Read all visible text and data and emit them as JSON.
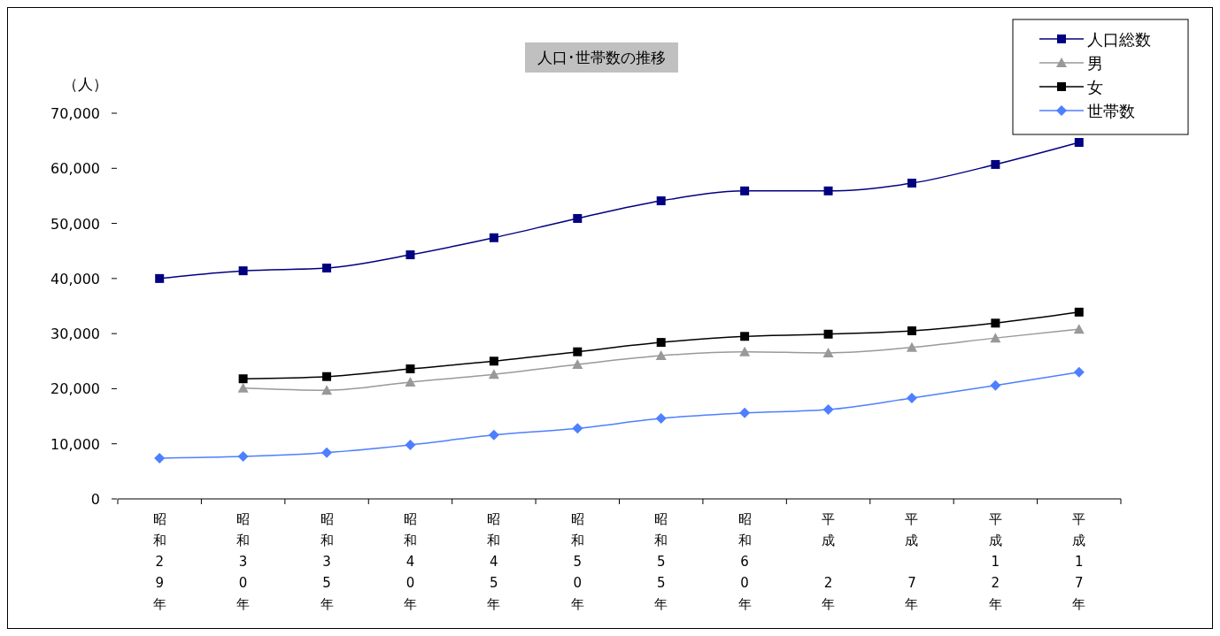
{
  "chart_data": {
    "type": "line",
    "title": "人口･世帯数の推移",
    "ylabel": "（人）",
    "categories": [
      "昭和29年",
      "昭和30年",
      "昭和35年",
      "昭和40年",
      "昭和45年",
      "昭和50年",
      "昭和55年",
      "昭和60年",
      "平成2年",
      "平成7年",
      "平成12年",
      "平成17年"
    ],
    "series": [
      {
        "name": "人口総数",
        "color": "#000080",
        "marker": "square",
        "values": [
          40000,
          41400,
          41900,
          44300,
          47400,
          50900,
          54100,
          55900,
          55900,
          57300,
          60700,
          64700
        ]
      },
      {
        "name": "男",
        "color": "#999999",
        "marker": "triangle",
        "values": [
          null,
          20100,
          19700,
          21200,
          22600,
          24400,
          26000,
          26700,
          26500,
          27500,
          29200,
          30800
        ]
      },
      {
        "name": "女",
        "color": "#000000",
        "marker": "square",
        "values": [
          null,
          21800,
          22200,
          23600,
          25000,
          26700,
          28400,
          29500,
          29900,
          30500,
          31900,
          33900
        ]
      },
      {
        "name": "世帯数",
        "color": "#4d7fff",
        "marker": "diamond",
        "values": [
          7400,
          7700,
          8400,
          9800,
          11600,
          12800,
          14600,
          15600,
          16200,
          18300,
          20600,
          23000
        ]
      }
    ],
    "ylim": [
      0,
      70000
    ],
    "yticks": [
      {
        "value": 0,
        "label": "0"
      },
      {
        "value": 10000,
        "label": "10,000"
      },
      {
        "value": 20000,
        "label": "20,000"
      },
      {
        "value": 30000,
        "label": "30,000"
      },
      {
        "value": 40000,
        "label": "40,000"
      },
      {
        "value": 50000,
        "label": "50,000"
      },
      {
        "value": 60000,
        "label": "60,000"
      },
      {
        "value": 70000,
        "label": "70,000"
      }
    ],
    "legend": "top right",
    "grid": false,
    "line_style": "solid"
  }
}
